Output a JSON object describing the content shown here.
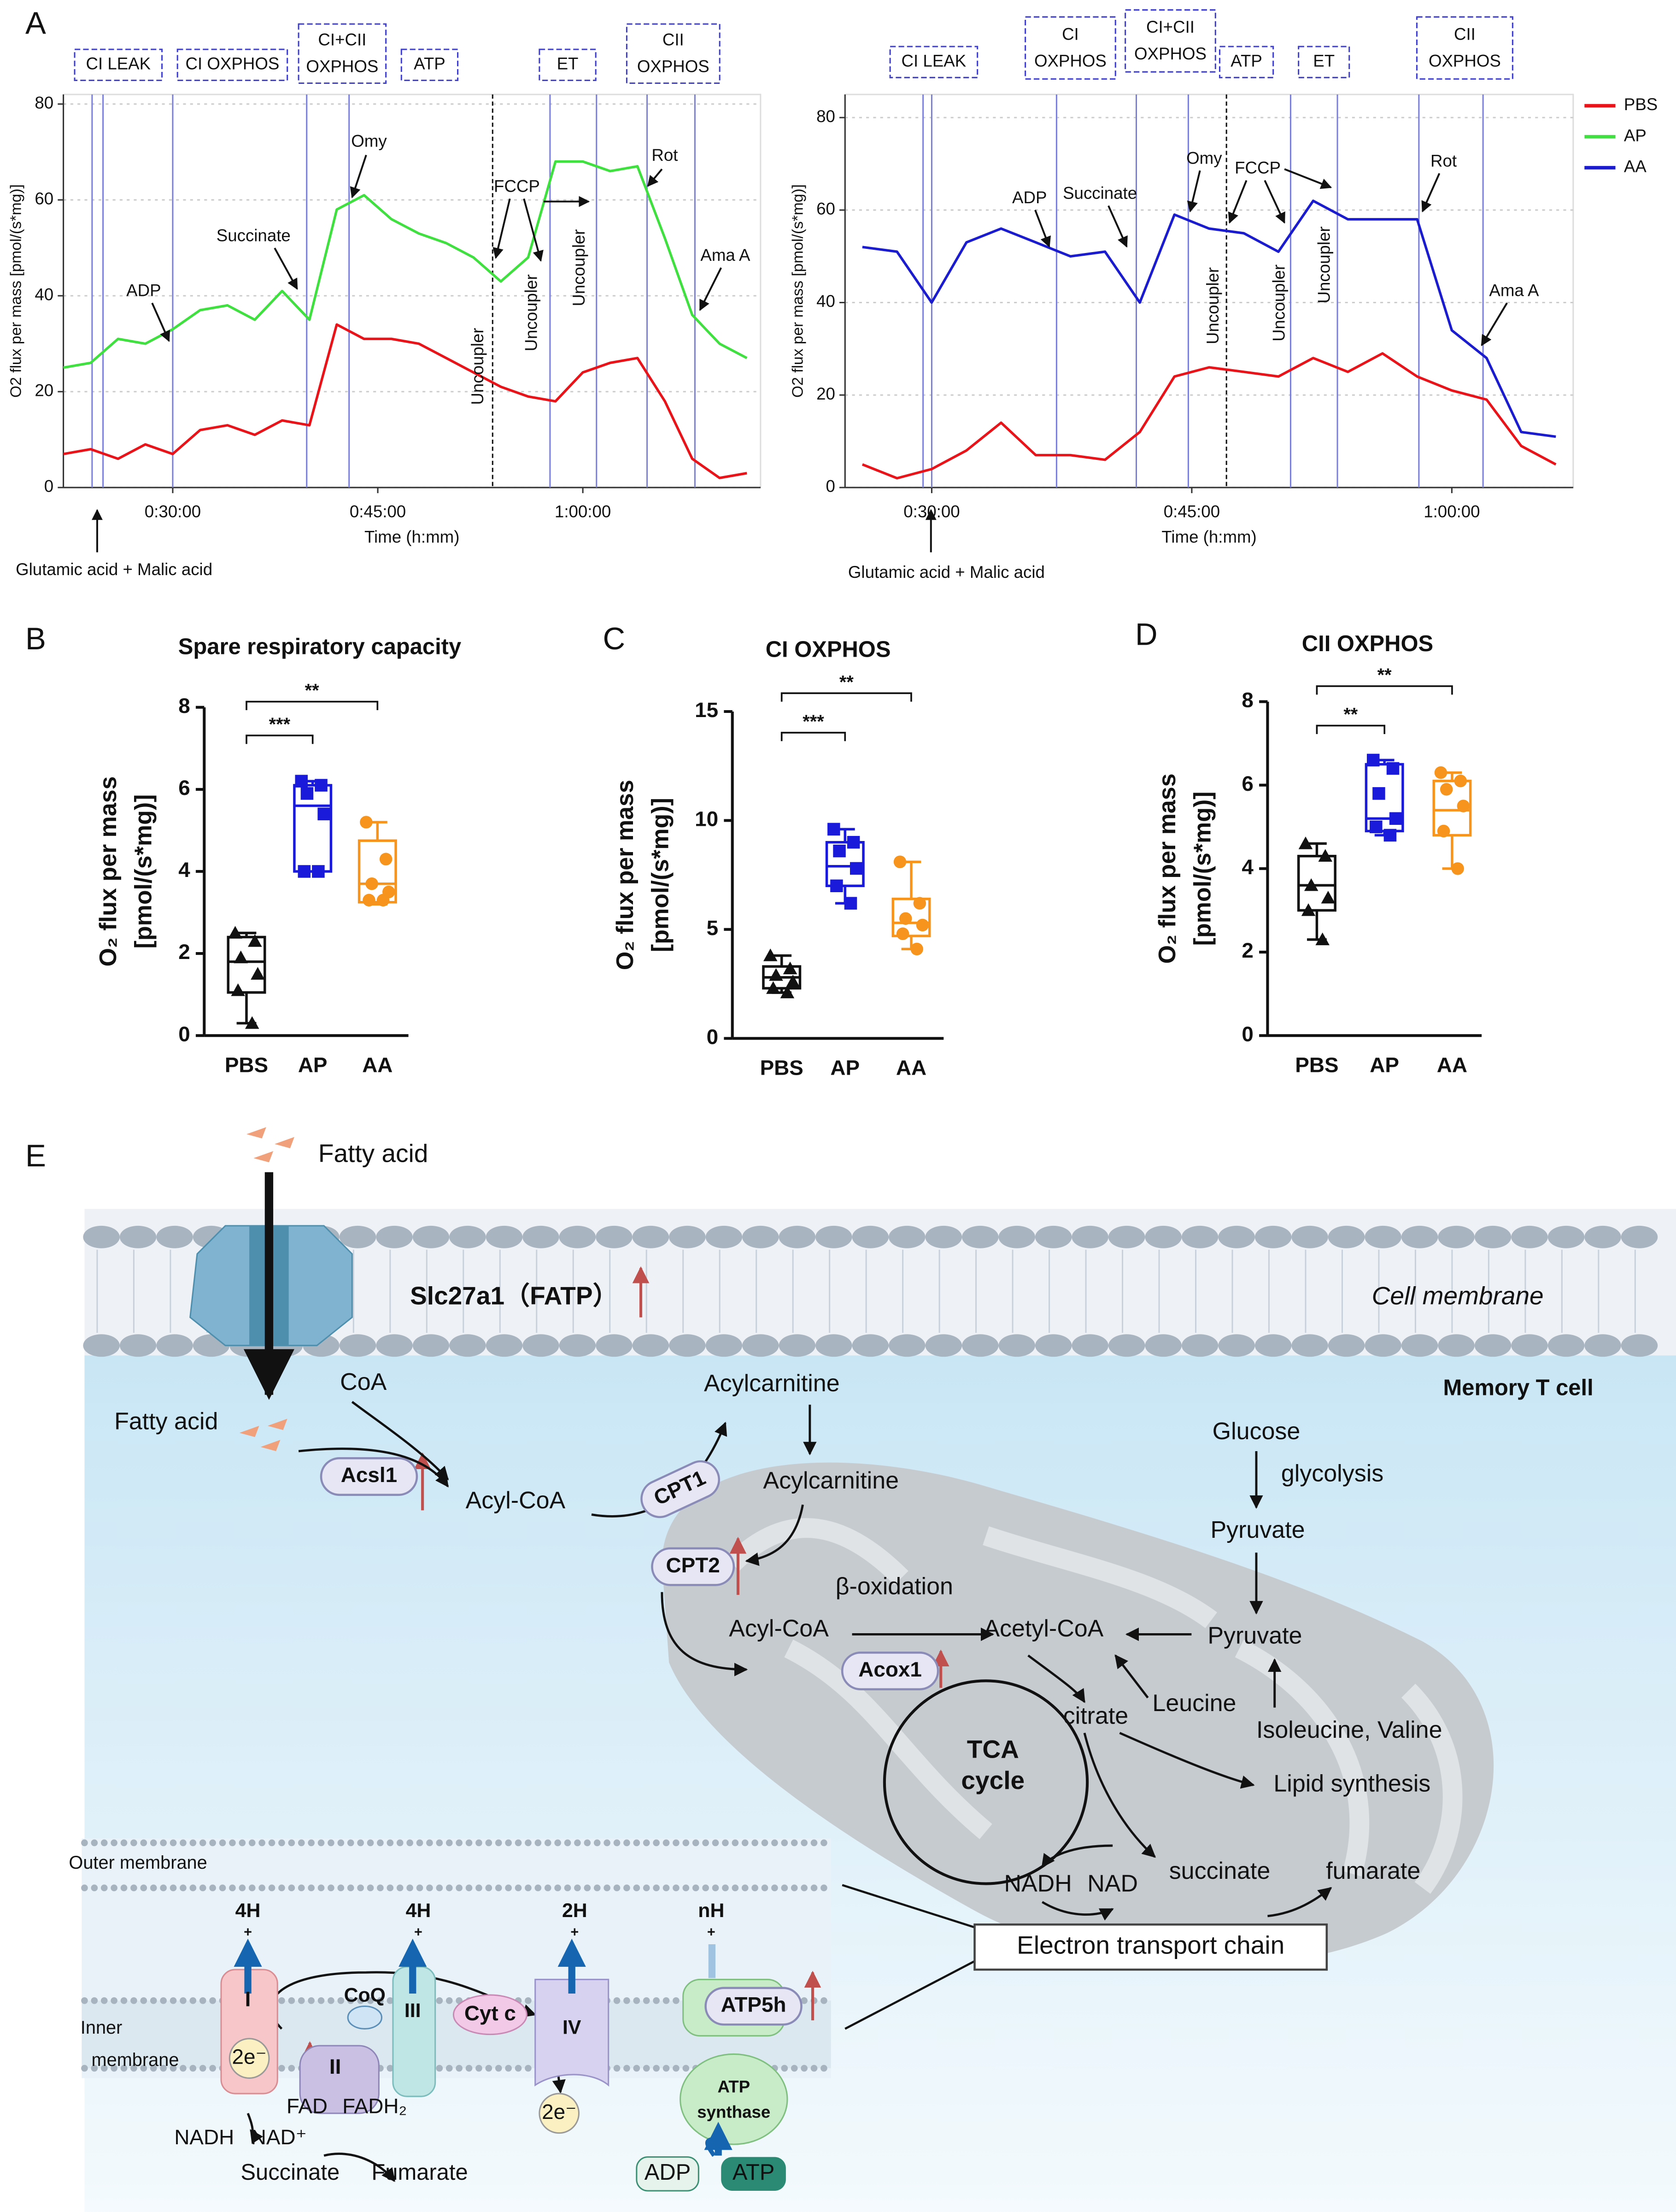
{
  "panels": [
    "A",
    "B",
    "C",
    "D",
    "E"
  ],
  "chart_data": [
    {
      "type": "line",
      "ylabel": "O2 flux per mass [pmol/(s*mg)]",
      "xlabel": "Time (h:mm)",
      "xlim": [
        22,
        73
      ],
      "ylim": [
        0,
        82
      ],
      "yticks": [
        0,
        20,
        40,
        60,
        80
      ],
      "xticks": [
        {
          "value": 30,
          "label": "0:30:00"
        },
        {
          "value": 45,
          "label": "0:45:00"
        },
        {
          "value": 60,
          "label": "1:00:00"
        }
      ],
      "grid": true,
      "x": [
        22,
        24,
        26,
        28,
        30,
        32,
        34,
        36,
        38,
        40,
        42,
        44,
        46,
        48,
        50,
        52,
        54,
        56,
        58,
        60,
        62,
        64,
        66,
        68,
        70,
        72
      ],
      "series": [
        {
          "name": "PBS",
          "color": "#e8141a",
          "values": [
            7,
            8,
            6,
            9,
            7,
            12,
            13,
            11,
            14,
            13,
            34,
            31,
            31,
            30,
            27,
            24,
            21,
            19,
            18,
            24,
            26,
            27,
            18,
            6,
            2,
            3
          ]
        },
        {
          "name": "AP",
          "color": "#3fe03f",
          "values": [
            25,
            26,
            31,
            30,
            33,
            37,
            38,
            35,
            41,
            35,
            58,
            61,
            56,
            53,
            51,
            48,
            43,
            48,
            68,
            68,
            66,
            67,
            52,
            36,
            30,
            27
          ]
        }
      ],
      "event_lines": [
        24.1,
        24.9,
        30,
        39.8,
        42.9,
        57.6,
        61,
        64.7,
        68.2
      ],
      "uncoupler_line": 53.4,
      "protocol": [
        "CI LEAK",
        "CI OXPHOS",
        [
          "CI+CII",
          "OXPHOS"
        ],
        "ATP",
        "ET",
        [
          "CII",
          "OXPHOS"
        ]
      ],
      "annotations": [
        "ADP",
        "Succinate",
        "Omy",
        "FCCP",
        "Rot",
        "Ama A"
      ],
      "rotated_annotations": [
        "Uncoupler",
        "Uncoupler",
        "Uncoupler"
      ],
      "footnote": "Glutamic acid + Malic acid"
    },
    {
      "type": "line",
      "ylabel": "O2 flux per mass [pmol/(s*mg)]",
      "xlabel": "Time (h:mm)",
      "xlim": [
        25,
        67
      ],
      "ylim": [
        0,
        85
      ],
      "yticks": [
        0,
        20,
        40,
        60,
        80
      ],
      "xticks": [
        {
          "value": 30,
          "label": "0:30:00"
        },
        {
          "value": 45,
          "label": "0:45:00"
        },
        {
          "value": 60,
          "label": "1:00:00"
        }
      ],
      "grid": true,
      "legend": "right",
      "x": [
        26,
        28,
        30,
        32,
        34,
        36,
        38,
        40,
        42,
        44,
        46,
        48,
        50,
        52,
        54,
        56,
        58,
        60,
        62,
        64,
        66
      ],
      "series": [
        {
          "name": "PBS",
          "color": "#e8141a",
          "values": [
            5,
            2,
            4,
            8,
            14,
            7,
            7,
            6,
            12,
            24,
            26,
            25,
            24,
            28,
            25,
            29,
            24,
            21,
            19,
            9,
            5
          ]
        },
        {
          "name": "AP",
          "color": "#3fe03f",
          "values": [
            null,
            null,
            null,
            null,
            null,
            null,
            null,
            null,
            null,
            null,
            null,
            null,
            null,
            null,
            null,
            null,
            null,
            null,
            null,
            null,
            null
          ]
        },
        {
          "name": "AA",
          "color": "#1c1ccf",
          "values": [
            52,
            51,
            40,
            53,
            56,
            53,
            50,
            51,
            40,
            59,
            56,
            55,
            51,
            62,
            58,
            58,
            58,
            34,
            28,
            12,
            11
          ]
        }
      ],
      "event_lines": [
        29.5,
        30,
        37.2,
        41.8,
        44.8,
        50.7,
        53.4,
        58.1,
        61.8
      ],
      "uncoupler_line": 47,
      "protocol": [
        "CI LEAK",
        [
          "CI",
          "OXPHOS"
        ],
        [
          "CI+CII",
          "OXPHOS"
        ],
        "ATP",
        "ET",
        [
          "CII",
          "OXPHOS"
        ]
      ],
      "annotations": [
        "ADP",
        "Succinate",
        "Omy",
        "FCCP",
        "Rot",
        "Ama A"
      ],
      "rotated_annotations": [
        "Uncoupler",
        "Uncoupler",
        "Uncoupler"
      ],
      "footnote": "Glutamic acid + Malic acid"
    },
    {
      "type": "box",
      "title": "Spare respiratory capacity",
      "ylabel": [
        "O₂ flux per mass",
        "[pmol/(s*mg)]"
      ],
      "categories": [
        "PBS",
        "AP",
        "AA"
      ],
      "colors": [
        "#111111",
        "#1a1adb",
        "#f7941d"
      ],
      "ylim": [
        0,
        8
      ],
      "yticks": [
        0,
        2,
        4,
        6,
        8
      ],
      "boxes": [
        {
          "min": 0.3,
          "q1": 1.05,
          "median": 1.8,
          "q3": 2.4,
          "max": 2.5,
          "points": [
            2.5,
            2.3,
            1.9,
            1.5,
            1.1,
            0.3
          ]
        },
        {
          "min": 4.0,
          "q1": 4.0,
          "median": 5.6,
          "q3": 6.1,
          "max": 6.2,
          "points": [
            6.2,
            6.1,
            5.9,
            5.4,
            4.0,
            4.0
          ]
        },
        {
          "min": 3.2,
          "q1": 3.25,
          "median": 3.7,
          "q3": 4.75,
          "max": 5.2,
          "points": [
            5.2,
            4.3,
            3.7,
            3.5,
            3.3,
            3.3
          ]
        }
      ],
      "significance": [
        "***",
        "**"
      ]
    },
    {
      "type": "box",
      "title": "CI OXPHOS",
      "ylabel": [
        "O₂ flux per mass",
        "[pmol/(s*mg)]"
      ],
      "categories": [
        "PBS",
        "AP",
        "AA"
      ],
      "colors": [
        "#111111",
        "#1a1adb",
        "#f7941d"
      ],
      "ylim": [
        0,
        15
      ],
      "yticks": [
        0,
        5,
        10,
        15
      ],
      "boxes": [
        {
          "min": 2.1,
          "q1": 2.3,
          "median": 2.8,
          "q3": 3.3,
          "max": 3.8,
          "points": [
            3.8,
            3.2,
            2.9,
            2.6,
            2.3,
            2.1
          ]
        },
        {
          "min": 6.2,
          "q1": 7.0,
          "median": 7.9,
          "q3": 9.0,
          "max": 9.6,
          "points": [
            9.6,
            9.0,
            8.6,
            7.8,
            7.0,
            6.2
          ]
        },
        {
          "min": 4.1,
          "q1": 4.7,
          "median": 5.3,
          "q3": 6.4,
          "max": 8.1,
          "points": [
            8.1,
            6.2,
            5.5,
            5.2,
            4.8,
            4.1
          ]
        }
      ],
      "significance": [
        "***",
        "**"
      ]
    },
    {
      "type": "box",
      "title": "CII OXPHOS",
      "ylabel": [
        "O₂ flux per mass",
        "[pmol/(s*mg)]"
      ],
      "categories": [
        "PBS",
        "AP",
        "AA"
      ],
      "colors": [
        "#111111",
        "#1a1adb",
        "#f7941d"
      ],
      "ylim": [
        0,
        8
      ],
      "yticks": [
        0,
        2,
        4,
        6,
        8
      ],
      "boxes": [
        {
          "min": 2.3,
          "q1": 3.0,
          "median": 3.6,
          "q3": 4.3,
          "max": 4.6,
          "points": [
            4.6,
            4.3,
            3.6,
            3.3,
            3.0,
            2.3
          ]
        },
        {
          "min": 4.8,
          "q1": 4.9,
          "median": 5.2,
          "q3": 6.5,
          "max": 6.6,
          "points": [
            6.6,
            6.4,
            5.8,
            5.2,
            5.0,
            4.8
          ]
        },
        {
          "min": 4.0,
          "q1": 4.8,
          "median": 5.4,
          "q3": 6.1,
          "max": 6.3,
          "points": [
            6.3,
            6.1,
            5.9,
            5.5,
            4.9,
            4.0
          ]
        }
      ],
      "significance": [
        "**",
        "**"
      ]
    }
  ],
  "diagram": {
    "labels": [
      "Fatty acid",
      "Slc27a1（FATP）",
      "Cell membrane",
      "Memory T cell",
      "CoA",
      "Fatty acid",
      "Acsl1",
      "Acyl-CoA",
      "CPT1",
      "Acylcarnitine",
      "Acylcarnitine",
      "CPT2",
      "β-oxidation",
      "Acyl-CoA",
      "Acox1",
      "Acetyl-CoA",
      "Pyruvate",
      "Glucose",
      "glycolysis",
      "Pyruvate",
      "Leucine",
      "citrate",
      "Isoleucine, Valine",
      "TCA",
      "cycle",
      "Lipid synthesis",
      "NADH",
      "NAD",
      "succinate",
      "fumarate",
      "Electron transport chain",
      "Outer membrane",
      "Inner",
      "membrane",
      "4H",
      "4H",
      "2H",
      "nH",
      "+",
      "+",
      "+",
      "+",
      "I",
      "CoQ",
      "III",
      "Cyt c",
      "IV",
      "ATP5h",
      "2e⁻",
      "II",
      "FAD",
      "FADH₂",
      "ATP",
      "synthase",
      "NADH",
      "NAD⁺",
      "Succinate",
      "Fumarate",
      "2e⁻",
      "ADP",
      "ATP"
    ]
  }
}
